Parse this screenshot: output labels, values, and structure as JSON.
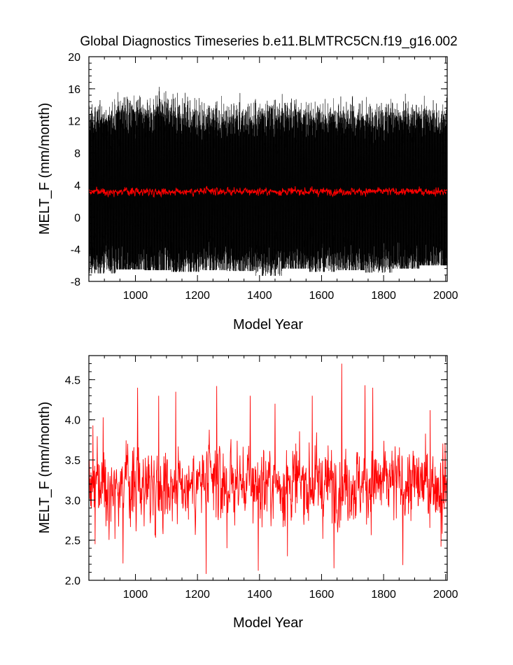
{
  "title": "Global Diagnostics Timeseries b.e11.BLMTRC5CN.f19_g16.002",
  "colors": {
    "monthly": "#000000",
    "annual": "#ff0000",
    "frame": "#000000"
  },
  "chart_data": [
    {
      "type": "line",
      "title": "Global Diagnostics Timeseries b.e11.BLMTRC5CN.f19_g16.002",
      "xlabel": "Model Year",
      "ylabel": "MELT_F (mm/month)",
      "xlim": [
        850,
        2005
      ],
      "ylim": [
        -8,
        20
      ],
      "x_ticks": [
        "1000",
        "1200",
        "1400",
        "1600",
        "1800",
        "2000"
      ],
      "y_ticks": [
        "-8",
        "-4",
        "0",
        "4",
        "8",
        "12",
        "16",
        "20"
      ],
      "grid": false,
      "series": [
        {
          "color": "#000000",
          "resolution": "monthly",
          "x_range": [
            850,
            2005
          ],
          "envelope_min": [
            -7.0,
            -6.5,
            -6.6,
            -6.8,
            -6.6,
            -6.7,
            -7.3,
            -6.4,
            -6.8,
            -6.6,
            -6.9,
            -6.4,
            -6.0
          ],
          "envelope_max": [
            15.2,
            17.6,
            18.0,
            16.4,
            15.8,
            15.6,
            15.6,
            16.2,
            15.2,
            16.0,
            15.4,
            16.0,
            16.8
          ],
          "center": 3.2
        },
        {
          "color": "#ff0000",
          "resolution": "annual",
          "x_range": [
            850,
            2005
          ],
          "mean": 3.2,
          "min": 2.1,
          "max": 4.7
        }
      ]
    },
    {
      "type": "line",
      "xlabel": "Model Year",
      "ylabel": "MELT_F (mm/month)",
      "xlim": [
        850,
        2005
      ],
      "ylim": [
        2.0,
        4.8
      ],
      "x_ticks": [
        "1000",
        "1200",
        "1400",
        "1600",
        "1800",
        "2000"
      ],
      "y_ticks": [
        "2.0",
        "2.5",
        "3.0",
        "3.5",
        "4.0",
        "4.5"
      ],
      "grid": false,
      "series": [
        {
          "color": "#ff0000",
          "resolution": "annual",
          "x_range": [
            850,
            2005
          ],
          "mean": 3.2,
          "min": 2.08,
          "max": 4.7,
          "peaks": [
            {
              "x": 863,
              "y": 3.93
            },
            {
              "x": 870,
              "y": 2.45
            },
            {
              "x": 896,
              "y": 4.03
            },
            {
              "x": 960,
              "y": 2.21
            },
            {
              "x": 1007,
              "y": 4.4
            },
            {
              "x": 1075,
              "y": 4.3
            },
            {
              "x": 1130,
              "y": 4.35
            },
            {
              "x": 1228,
              "y": 2.08
            },
            {
              "x": 1262,
              "y": 4.42
            },
            {
              "x": 1295,
              "y": 2.4
            },
            {
              "x": 1370,
              "y": 4.3
            },
            {
              "x": 1396,
              "y": 2.12
            },
            {
              "x": 1450,
              "y": 4.2
            },
            {
              "x": 1490,
              "y": 2.3
            },
            {
              "x": 1570,
              "y": 4.3
            },
            {
              "x": 1640,
              "y": 2.15
            },
            {
              "x": 1665,
              "y": 4.7
            },
            {
              "x": 1740,
              "y": 4.43
            },
            {
              "x": 1765,
              "y": 4.4
            },
            {
              "x": 1862,
              "y": 2.19
            },
            {
              "x": 1950,
              "y": 4.12
            },
            {
              "x": 1985,
              "y": 2.42
            }
          ]
        }
      ]
    }
  ]
}
